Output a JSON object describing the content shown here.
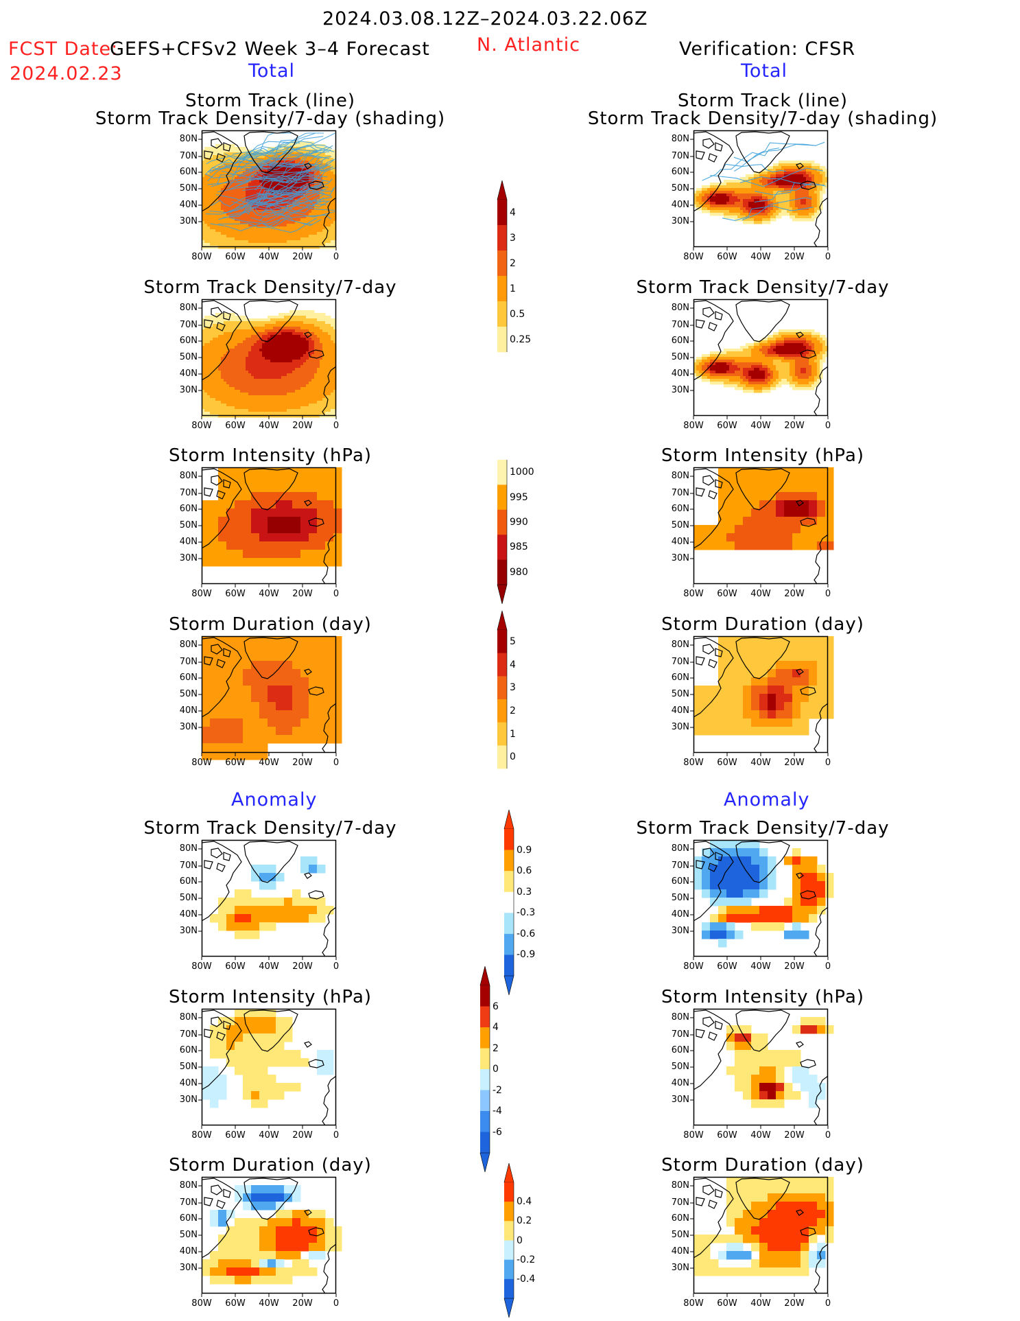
{
  "header": {
    "period": "2024.03.08.12Z–2024.03.22.06Z",
    "fcst_label": "FCST Date:",
    "fcst_model": "GEFS+CFSv2 Week 3–4 Forecast",
    "fcst_date": "2024.02.23",
    "region": "N. Atlantic",
    "verification": "Verification: CFSR"
  },
  "sections": {
    "total": "Total",
    "anomaly": "Anomaly"
  },
  "panel_titles": {
    "track_line": "Storm Track (line)",
    "track_shading": "Storm Track Density/7-day (shading)",
    "density": "Storm Track Density/7-day",
    "intensity": "Storm Intensity (hPa)",
    "duration": "Storm Duration (day)"
  },
  "axes": {
    "lat_ticks": [
      "80N",
      "70N",
      "60N",
      "50N",
      "40N",
      "30N"
    ],
    "lon_ticks": [
      "80W",
      "60W",
      "40W",
      "20W",
      "0"
    ]
  },
  "colorbars": {
    "density_total": {
      "labels": [
        "4",
        "3",
        "2",
        "1",
        "0.5",
        "0.25"
      ],
      "colors": [
        "#a50000",
        "#dc2c14",
        "#f06414",
        "#ff9b0a",
        "#ffc83c",
        "#fff0a0"
      ]
    },
    "intensity_total": {
      "labels": [
        "1000",
        "995",
        "990",
        "985",
        "980"
      ],
      "colors": [
        "#fff3b0",
        "#ffa000",
        "#f05a0f",
        "#c81414",
        "#960000"
      ]
    },
    "duration_total": {
      "labels": [
        "5",
        "4",
        "3",
        "2",
        "1",
        "0"
      ],
      "colors": [
        "#a50000",
        "#dc2c14",
        "#f06414",
        "#ff9b0a",
        "#ffc83c",
        "#fff0a0"
      ]
    },
    "density_anom": {
      "labels": [
        "0.9",
        "0.6",
        "0.3",
        "-0.3",
        "-0.6",
        "-0.9"
      ],
      "colors": [
        "#ff3a00",
        "#ffa000",
        "#ffe878",
        "#ffffff",
        "#a8e4fa",
        "#50a8f0",
        "#1e64dc"
      ]
    },
    "intensity_anom": {
      "labels": [
        "6",
        "4",
        "2",
        "0",
        "-2",
        "-4",
        "-6"
      ],
      "colors": [
        "#a50000",
        "#f03c14",
        "#ffa000",
        "#ffe878",
        "#c8f0ff",
        "#8cc8ff",
        "#3c8cf0",
        "#1e64dc"
      ]
    },
    "duration_anom": {
      "labels": [
        "0.4",
        "0.2",
        "0",
        "-0.2",
        "-0.4"
      ],
      "colors": [
        "#ff3a00",
        "#ffa000",
        "#ffe878",
        "#c8f0ff",
        "#50a8f0",
        "#1e64dc"
      ]
    }
  }
}
